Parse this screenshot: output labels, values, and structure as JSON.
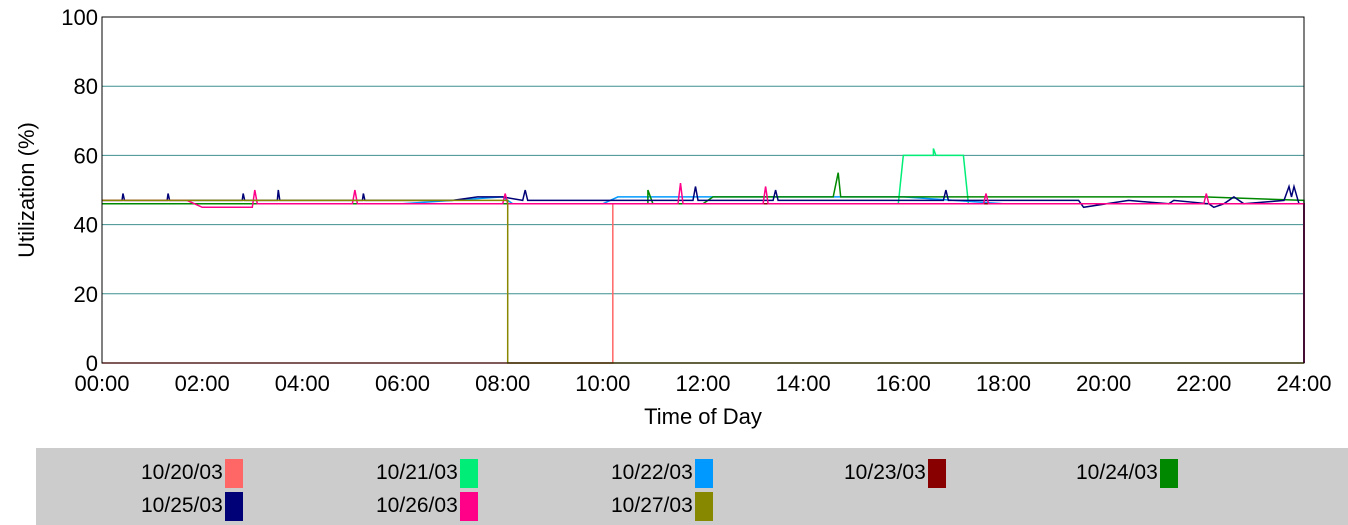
{
  "chart_data": {
    "type": "line",
    "title": "",
    "xlabel": "Time of Day",
    "ylabel": "Utilization (%)",
    "xlim": [
      0,
      24
    ],
    "ylim": [
      0,
      100
    ],
    "x_ticks": [
      "00:00",
      "02:00",
      "04:00",
      "06:00",
      "08:00",
      "10:00",
      "12:00",
      "14:00",
      "16:00",
      "18:00",
      "20:00",
      "22:00",
      "24:00"
    ],
    "y_ticks": [
      0,
      20,
      40,
      60,
      80,
      100
    ],
    "grid": "horizontal",
    "legend_position": "bottom",
    "series": [
      {
        "name": "10/20/03",
        "color": "#ff6666",
        "points": [
          [
            0,
            0
          ],
          [
            10.2,
            0
          ],
          [
            10.2,
            46
          ],
          [
            24,
            46
          ],
          [
            24,
            0
          ]
        ]
      },
      {
        "name": "10/21/03",
        "color": "#00ee77",
        "points": [
          [
            0,
            46
          ],
          [
            15.9,
            46
          ],
          [
            16.0,
            60
          ],
          [
            16.6,
            60
          ],
          [
            16.6,
            62
          ],
          [
            16.65,
            60
          ],
          [
            17.2,
            60
          ],
          [
            17.3,
            46
          ],
          [
            24,
            46
          ],
          [
            24,
            0
          ]
        ]
      },
      {
        "name": "10/22/03",
        "color": "#0099ff",
        "points": [
          [
            0,
            46
          ],
          [
            6,
            46
          ],
          [
            8,
            48
          ],
          [
            8.2,
            46
          ],
          [
            10,
            46
          ],
          [
            10.3,
            48
          ],
          [
            12,
            48
          ],
          [
            14,
            48
          ],
          [
            16,
            48
          ],
          [
            18,
            46
          ],
          [
            24,
            46
          ],
          [
            24,
            0
          ]
        ]
      },
      {
        "name": "10/23/03",
        "color": "#880000",
        "points": [
          [
            0,
            46
          ],
          [
            24,
            46
          ],
          [
            24,
            0
          ]
        ]
      },
      {
        "name": "10/24/03",
        "color": "#008800",
        "points": [
          [
            0,
            46
          ],
          [
            10.9,
            46
          ],
          [
            10.9,
            50
          ],
          [
            11,
            46
          ],
          [
            12,
            46
          ],
          [
            12.2,
            48
          ],
          [
            14,
            48
          ],
          [
            14.6,
            48
          ],
          [
            14.7,
            55
          ],
          [
            14.75,
            48
          ],
          [
            16,
            48
          ],
          [
            18,
            48
          ],
          [
            20,
            48
          ],
          [
            21,
            48
          ],
          [
            22,
            48
          ],
          [
            24,
            47
          ],
          [
            24,
            0
          ]
        ]
      },
      {
        "name": "10/25/03",
        "color": "#000077",
        "points": [
          [
            0,
            47
          ],
          [
            0.4,
            47
          ],
          [
            0.42,
            49
          ],
          [
            0.45,
            47
          ],
          [
            1.3,
            47
          ],
          [
            1.32,
            49
          ],
          [
            1.35,
            47
          ],
          [
            2.8,
            47
          ],
          [
            2.82,
            49
          ],
          [
            2.85,
            47
          ],
          [
            3.5,
            47
          ],
          [
            3.52,
            50
          ],
          [
            3.55,
            47
          ],
          [
            5.2,
            47
          ],
          [
            5.22,
            49
          ],
          [
            5.25,
            47
          ],
          [
            7,
            47
          ],
          [
            7.5,
            48
          ],
          [
            8.0,
            48
          ],
          [
            8.4,
            47
          ],
          [
            8.45,
            50
          ],
          [
            8.5,
            47
          ],
          [
            11.8,
            47
          ],
          [
            11.85,
            51
          ],
          [
            11.9,
            47
          ],
          [
            13.4,
            47
          ],
          [
            13.45,
            50
          ],
          [
            13.5,
            47
          ],
          [
            16.8,
            47
          ],
          [
            16.85,
            50
          ],
          [
            16.9,
            47
          ],
          [
            19.5,
            47
          ],
          [
            19.6,
            45
          ],
          [
            20.5,
            47
          ],
          [
            21.3,
            46
          ],
          [
            21.4,
            47
          ],
          [
            22.1,
            46
          ],
          [
            22.2,
            45
          ],
          [
            22.4,
            46
          ],
          [
            22.6,
            48
          ],
          [
            22.8,
            46
          ],
          [
            23.6,
            47
          ],
          [
            23.7,
            51
          ],
          [
            23.75,
            48
          ],
          [
            23.8,
            51
          ],
          [
            23.9,
            46
          ],
          [
            24,
            46
          ],
          [
            24,
            0
          ]
        ]
      },
      {
        "name": "10/26/03",
        "color": "#ff0088",
        "points": [
          [
            0,
            47
          ],
          [
            1.7,
            47
          ],
          [
            2.0,
            45
          ],
          [
            3.0,
            45
          ],
          [
            3.05,
            50
          ],
          [
            3.1,
            46
          ],
          [
            5,
            46
          ],
          [
            5.05,
            50
          ],
          [
            5.1,
            46
          ],
          [
            8.0,
            46
          ],
          [
            8.05,
            49
          ],
          [
            8.1,
            46
          ],
          [
            11.5,
            46
          ],
          [
            11.55,
            52
          ],
          [
            11.6,
            46
          ],
          [
            13.2,
            46
          ],
          [
            13.25,
            51
          ],
          [
            13.3,
            46
          ],
          [
            17.6,
            46
          ],
          [
            17.65,
            49
          ],
          [
            17.7,
            46
          ],
          [
            22.0,
            46
          ],
          [
            22.05,
            49
          ],
          [
            22.1,
            46
          ],
          [
            24,
            46
          ],
          [
            24,
            0
          ]
        ]
      },
      {
        "name": "10/27/03",
        "color": "#888800",
        "points": [
          [
            0,
            47
          ],
          [
            4,
            47
          ],
          [
            6,
            47
          ],
          [
            7.9,
            47
          ],
          [
            8.1,
            47
          ],
          [
            8.1,
            0
          ],
          [
            24,
            0
          ]
        ]
      }
    ]
  }
}
